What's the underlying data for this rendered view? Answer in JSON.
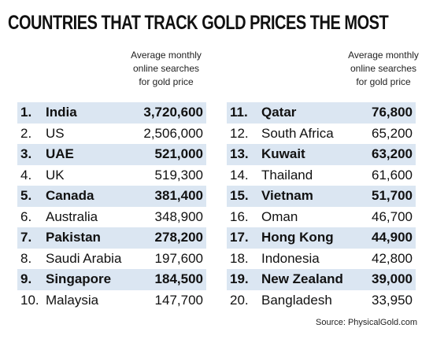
{
  "chart_data": {
    "type": "table",
    "title": "COUNTRIES THAT TRACK GOLD PRICES THE MOST",
    "column_header": [
      "Average monthly",
      "online searches",
      "for gold price"
    ],
    "highlight_color": "#dbe6f2",
    "left_rows": [
      {
        "rank": "1.",
        "country": "India",
        "value": "3,720,600",
        "highlight": true
      },
      {
        "rank": "2.",
        "country": "US",
        "value": "2,506,000",
        "highlight": false
      },
      {
        "rank": "3.",
        "country": "UAE",
        "value": "521,000",
        "highlight": true
      },
      {
        "rank": "4.",
        "country": "UK",
        "value": "519,300",
        "highlight": false
      },
      {
        "rank": "5.",
        "country": "Canada",
        "value": "381,400",
        "highlight": true
      },
      {
        "rank": "6.",
        "country": "Australia",
        "value": "348,900",
        "highlight": false
      },
      {
        "rank": "7.",
        "country": "Pakistan",
        "value": "278,200",
        "highlight": true
      },
      {
        "rank": "8.",
        "country": "Saudi Arabia",
        "value": "197,600",
        "highlight": false
      },
      {
        "rank": "9.",
        "country": "Singapore",
        "value": "184,500",
        "highlight": true
      },
      {
        "rank": "10.",
        "country": "Malaysia",
        "value": "147,700",
        "highlight": false
      }
    ],
    "right_rows": [
      {
        "rank": "11.",
        "country": "Qatar",
        "value": "76,800",
        "highlight": true
      },
      {
        "rank": "12.",
        "country": "South Africa",
        "value": "65,200",
        "highlight": false
      },
      {
        "rank": "13.",
        "country": "Kuwait",
        "value": "63,200",
        "highlight": true
      },
      {
        "rank": "14.",
        "country": "Thailand",
        "value": "61,600",
        "highlight": false
      },
      {
        "rank": "15.",
        "country": "Vietnam",
        "value": "51,700",
        "highlight": true
      },
      {
        "rank": "16.",
        "country": "Oman",
        "value": "46,700",
        "highlight": false
      },
      {
        "rank": "17.",
        "country": "Hong Kong",
        "value": "44,900",
        "highlight": true
      },
      {
        "rank": "18.",
        "country": "Indonesia",
        "value": "42,800",
        "highlight": false
      },
      {
        "rank": "19.",
        "country": "New Zealand",
        "value": "39,000",
        "highlight": true
      },
      {
        "rank": "20.",
        "country": "Bangladesh",
        "value": "33,950",
        "highlight": false
      }
    ],
    "source": "Source: PhysicalGold.com"
  }
}
